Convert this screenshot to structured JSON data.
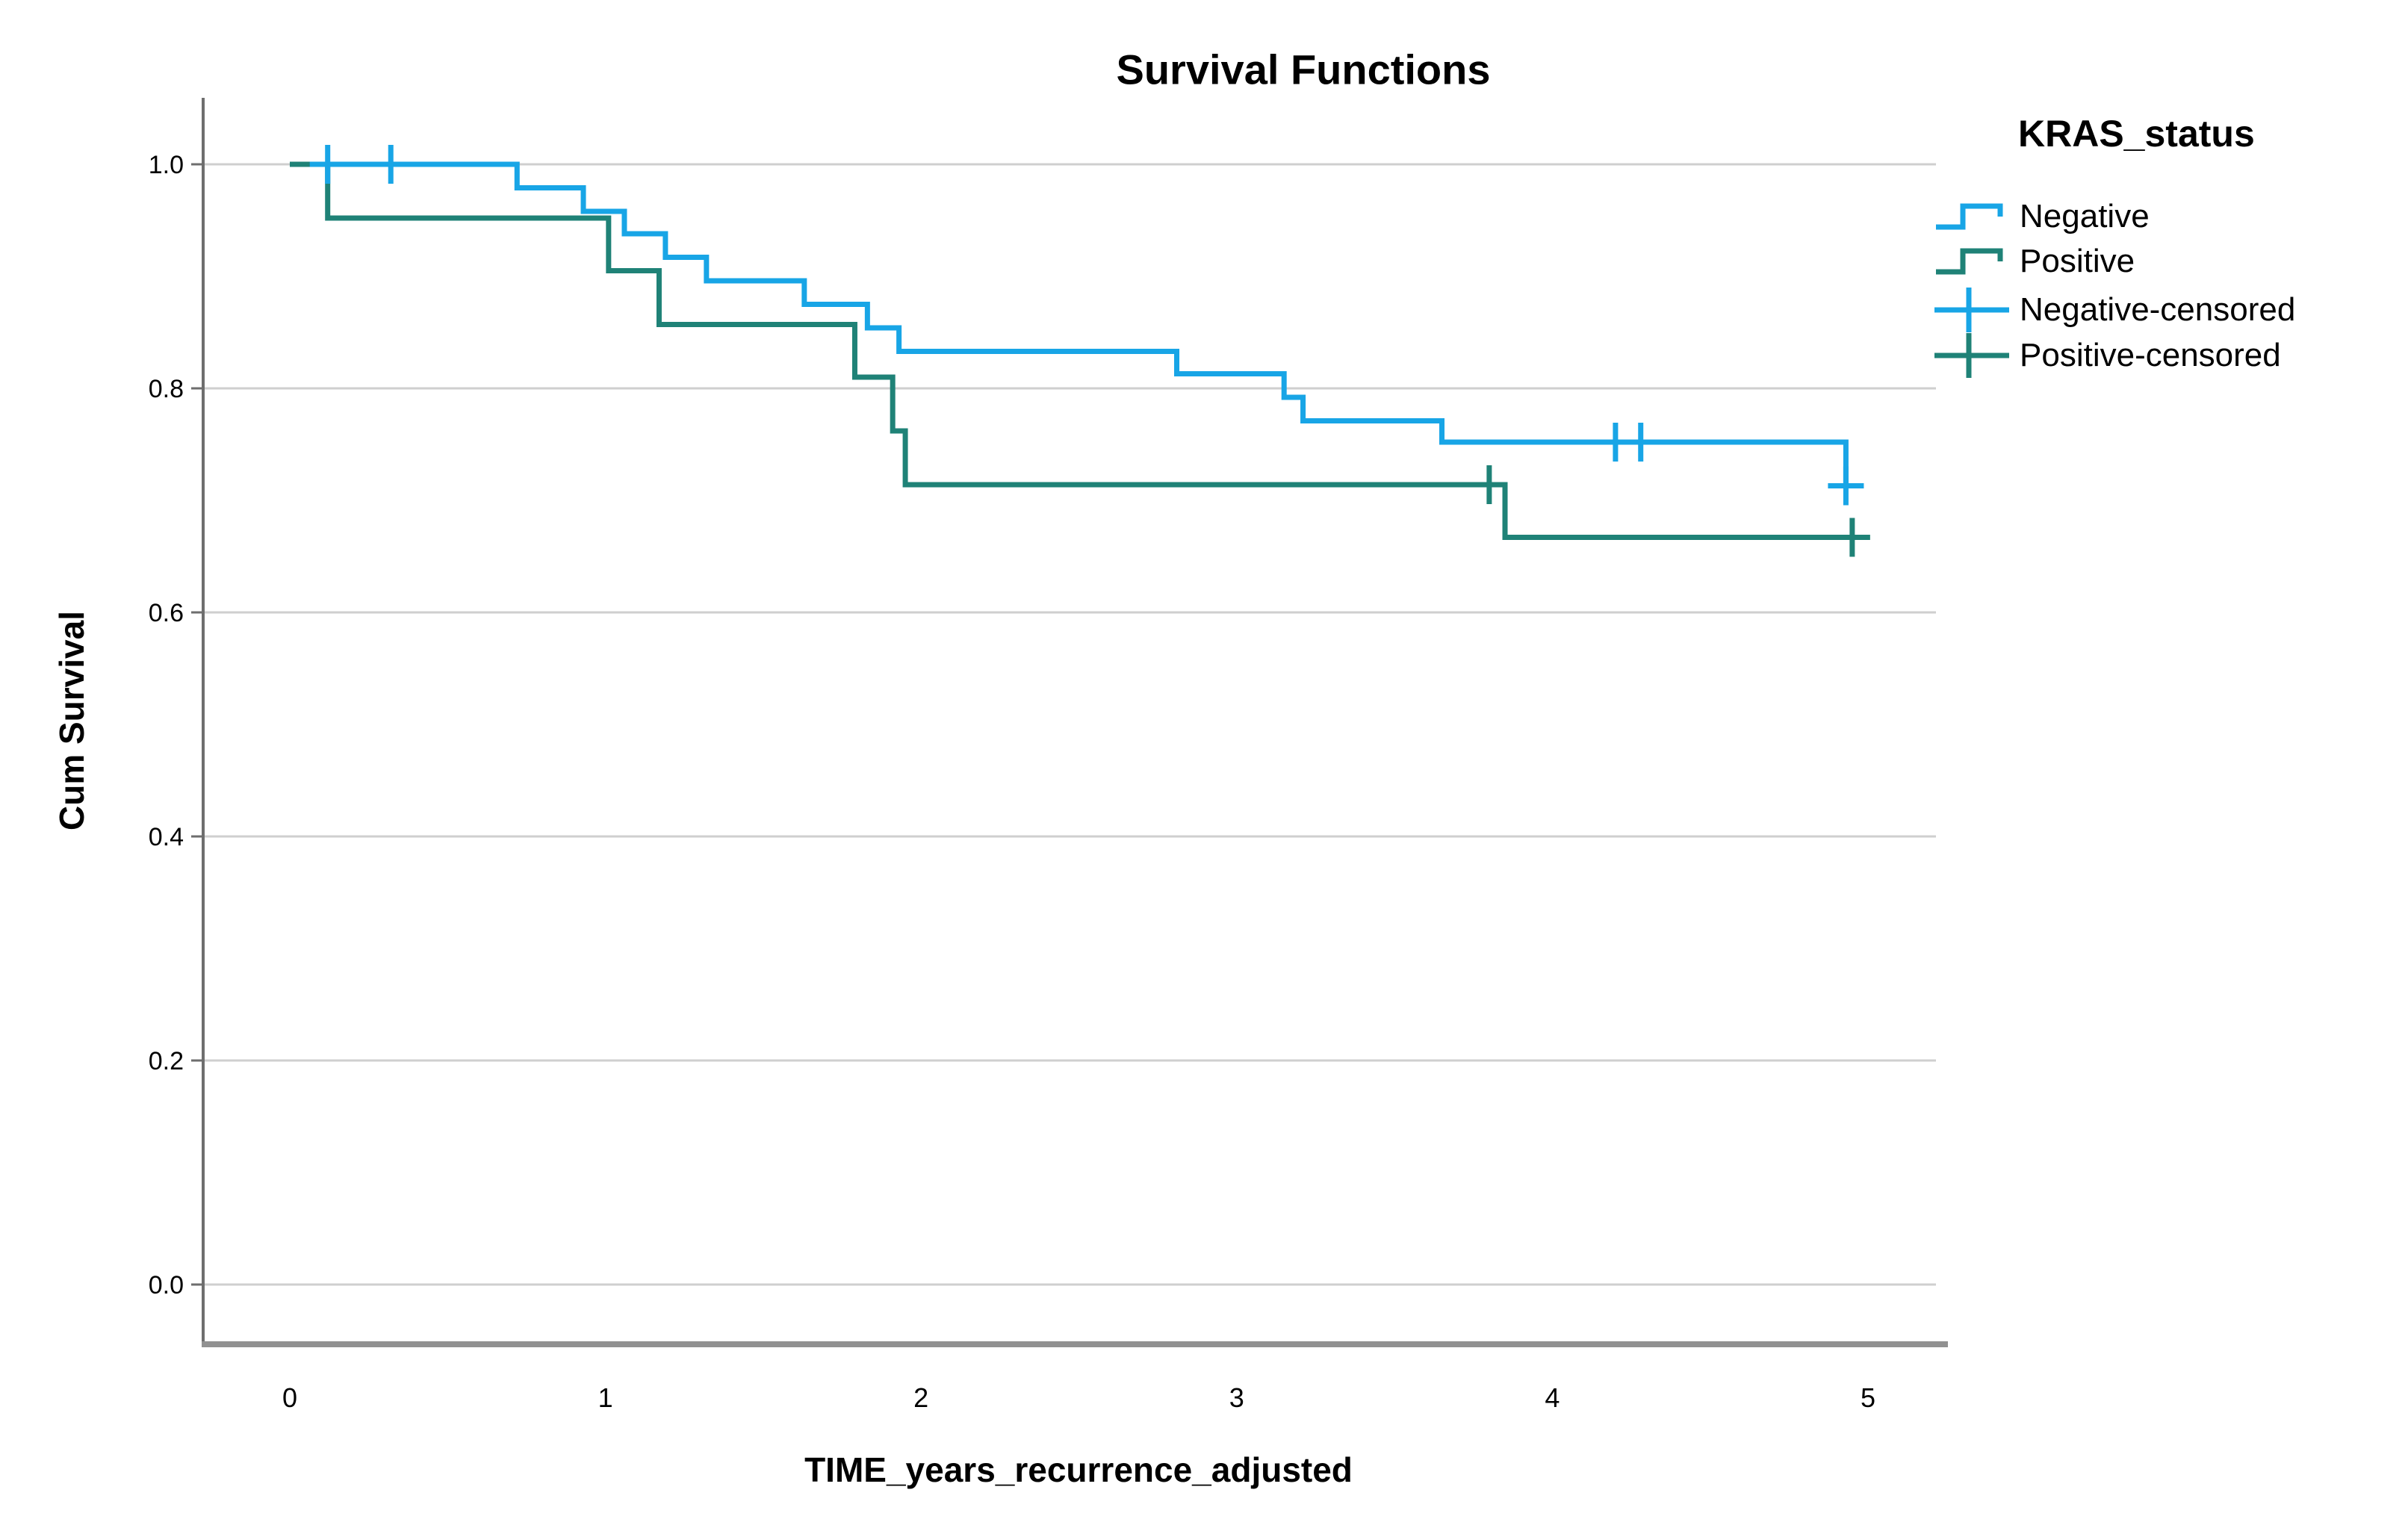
{
  "page": {
    "background": "#ffffff",
    "text_color": "#000000"
  },
  "chart_data": {
    "type": "line",
    "subtype": "kaplan_meier_step",
    "title": "Survival Functions",
    "xlabel": "TIME_years_recurrence_adjusted",
    "ylabel": "Cum Survival",
    "legend_title": "KRAS_status",
    "legend_position": "right",
    "grid": "horizontal-only",
    "xlim": [
      -0.28,
      5.25
    ],
    "ylim": [
      -0.053,
      1.059
    ],
    "xticks": [
      0,
      1,
      2,
      3,
      4,
      5
    ],
    "xtick_labels": [
      "0",
      "1",
      "2",
      "3",
      "4",
      "5"
    ],
    "yticks": [
      1.0,
      0.8,
      0.6,
      0.4,
      0.2,
      0.0
    ],
    "ytick_labels": [
      "1.0",
      "0.8",
      "0.6",
      "0.4",
      "0.2",
      "0.0"
    ],
    "colors": {
      "negative": "#18A5E6",
      "positive": "#1F8277",
      "gridline": "#CFCFCF",
      "axis_left": "#6E6E6E",
      "axis_bottom": "#919191"
    },
    "series": [
      {
        "name": "Negative",
        "color": "#18A5E6",
        "start": [
          0,
          1.0
        ],
        "drops": [
          [
            0.72,
            0.979
          ],
          [
            0.93,
            0.958
          ],
          [
            1.06,
            0.938
          ],
          [
            1.19,
            0.917
          ],
          [
            1.32,
            0.896
          ],
          [
            1.63,
            0.875
          ],
          [
            1.83,
            0.854
          ],
          [
            1.93,
            0.833
          ],
          [
            2.81,
            0.813
          ],
          [
            3.15,
            0.792
          ],
          [
            3.21,
            0.771
          ],
          [
            3.65,
            0.752
          ],
          [
            4.93,
            0.713
          ]
        ],
        "end_t": 4.96,
        "censored": [
          [
            0.12,
            1.0
          ],
          [
            0.32,
            1.0
          ],
          [
            4.2,
            0.752
          ],
          [
            4.28,
            0.752
          ],
          [
            4.93,
            0.713
          ]
        ]
      },
      {
        "name": "Positive",
        "color": "#1F8277",
        "start": [
          0,
          1.0
        ],
        "drops": [
          [
            0.12,
            0.952
          ],
          [
            1.01,
            0.905
          ],
          [
            1.17,
            0.857
          ],
          [
            1.79,
            0.81
          ],
          [
            1.91,
            0.762
          ],
          [
            1.95,
            0.714
          ],
          [
            3.85,
            0.667
          ]
        ],
        "end_t": 4.98,
        "censored": [
          [
            3.8,
            0.714
          ],
          [
            4.95,
            0.667
          ]
        ]
      }
    ],
    "legend": [
      {
        "label": "Negative",
        "symbol": "step",
        "color": "#18A5E6"
      },
      {
        "label": "Positive",
        "symbol": "step",
        "color": "#1F8277"
      },
      {
        "label": "Negative-censored",
        "symbol": "plus",
        "color": "#18A5E6"
      },
      {
        "label": "Positive-censored",
        "symbol": "plus",
        "color": "#1F8277"
      }
    ]
  }
}
